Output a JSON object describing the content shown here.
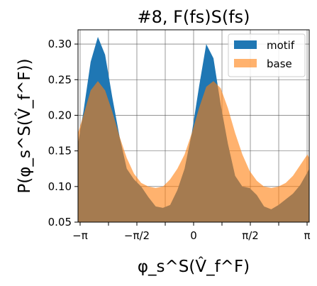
{
  "chart_data": {
    "type": "area",
    "title": "#8, F(fs)S(fs)",
    "xlabel": "φ_s^S(V̂_f^F)",
    "ylabel": "P(φ_s^S(V̂_f^F))",
    "xlim": [
      -3.2,
      3.2
    ],
    "ylim": [
      0.05,
      0.32
    ],
    "xticks": [
      {
        "label": "−π",
        "value": -3.14159
      },
      {
        "label": "−π/2",
        "value": -1.5708
      },
      {
        "label": "0",
        "value": 0
      },
      {
        "label": "π/2",
        "value": 1.5708
      },
      {
        "label": "π",
        "value": 3.14159
      }
    ],
    "yticks": [
      {
        "label": "0.05",
        "value": 0.05
      },
      {
        "label": "0.10",
        "value": 0.1
      },
      {
        "label": "0.15",
        "value": 0.15
      },
      {
        "label": "0.20",
        "value": 0.2
      },
      {
        "label": "0.25",
        "value": 0.25
      },
      {
        "label": "0.30",
        "value": 0.3
      }
    ],
    "grid": true,
    "legend_position": "top-right",
    "x": [
      -3.2,
      -3.05,
      -2.85,
      -2.65,
      -2.45,
      -2.25,
      -2.05,
      -1.85,
      -1.65,
      -1.45,
      -1.25,
      -1.05,
      -0.85,
      -0.65,
      -0.45,
      -0.25,
      -0.05,
      0.15,
      0.35,
      0.55,
      0.75,
      0.95,
      1.15,
      1.35,
      1.55,
      1.75,
      1.95,
      2.15,
      2.35,
      2.55,
      2.75,
      2.95,
      3.15,
      3.2
    ],
    "series": [
      {
        "name": "motif",
        "color": "#1f77b4",
        "values": [
          0.16,
          0.205,
          0.275,
          0.31,
          0.285,
          0.225,
          0.17,
          0.125,
          0.11,
          0.1,
          0.085,
          0.072,
          0.07,
          0.074,
          0.095,
          0.125,
          0.175,
          0.24,
          0.3,
          0.28,
          0.215,
          0.16,
          0.115,
          0.1,
          0.098,
          0.088,
          0.072,
          0.068,
          0.074,
          0.082,
          0.09,
          0.102,
          0.12,
          0.125
        ]
      },
      {
        "name": "base",
        "color": "#ff7f0e",
        "values": [
          0.175,
          0.2,
          0.235,
          0.248,
          0.235,
          0.205,
          0.17,
          0.14,
          0.118,
          0.105,
          0.1,
          0.098,
          0.1,
          0.11,
          0.125,
          0.145,
          0.175,
          0.21,
          0.24,
          0.248,
          0.238,
          0.21,
          0.175,
          0.145,
          0.122,
          0.108,
          0.1,
          0.098,
          0.1,
          0.105,
          0.115,
          0.13,
          0.145,
          0.14
        ]
      }
    ]
  }
}
